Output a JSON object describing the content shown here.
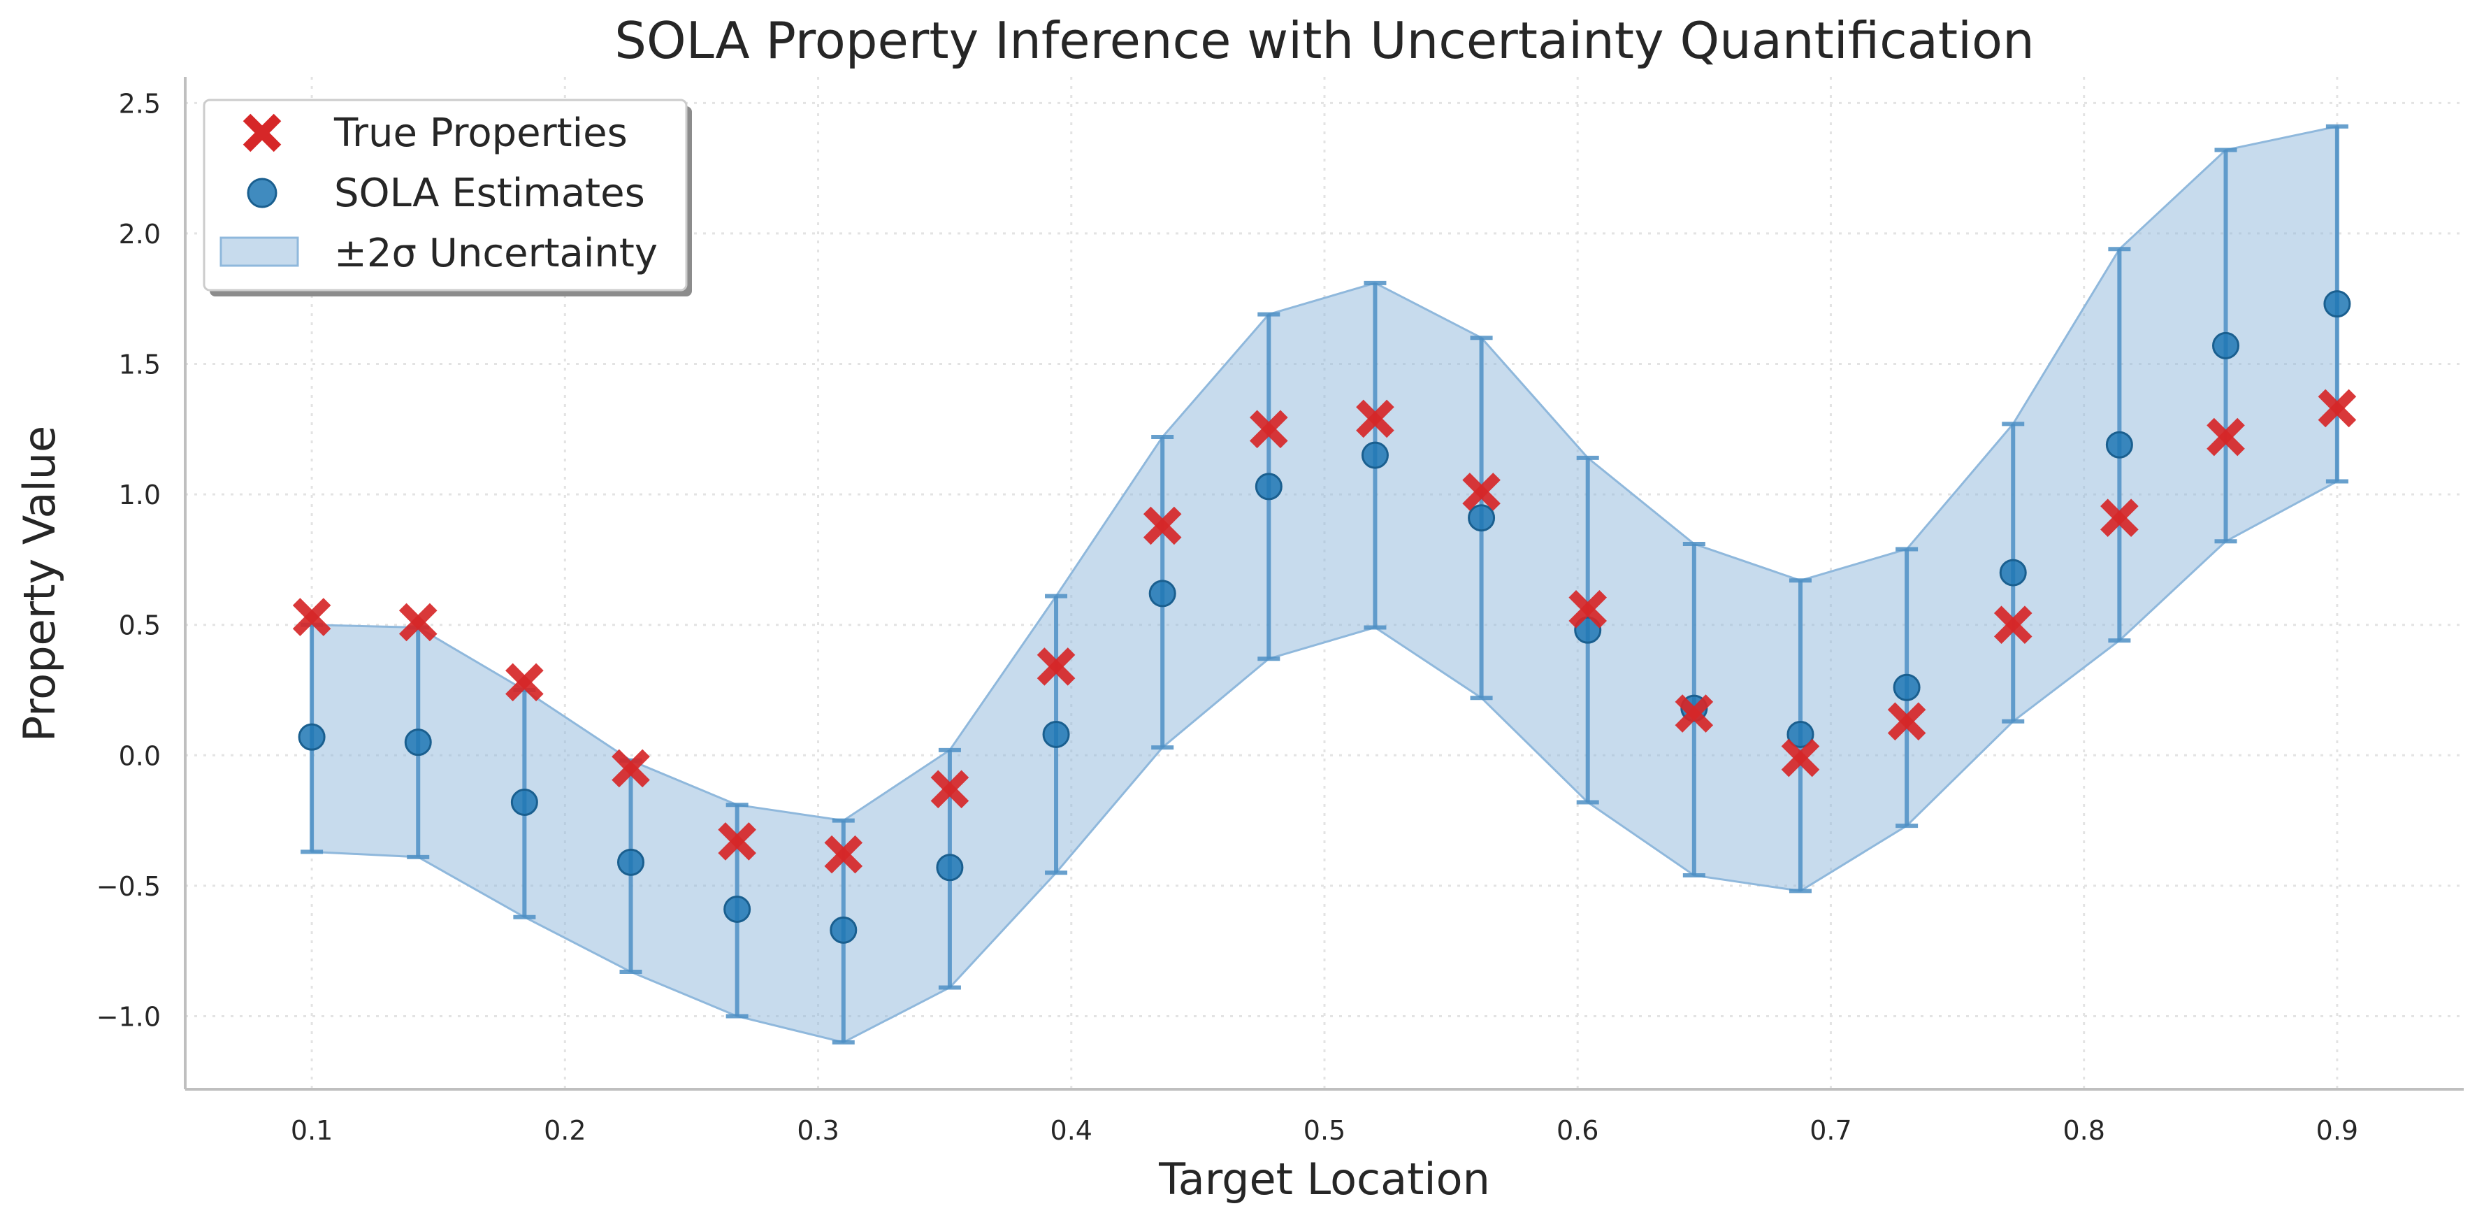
{
  "chart_data": {
    "type": "scatter",
    "title": "SOLA Property Inference with Uncertainty Quantification",
    "xlabel": "Target Location",
    "ylabel": "Property Value",
    "xlim": [
      0.05,
      0.95
    ],
    "ylim": [
      -1.28,
      2.6
    ],
    "grid": true,
    "legend_position": "top-left",
    "x": [
      0.1,
      0.142,
      0.184,
      0.226,
      0.268,
      0.31,
      0.352,
      0.394,
      0.436,
      0.478,
      0.52,
      0.562,
      0.604,
      0.646,
      0.688,
      0.73,
      0.772,
      0.814,
      0.856,
      0.9
    ],
    "x_ticks": [
      "0.1",
      "0.2",
      "0.3",
      "0.4",
      "0.5",
      "0.6",
      "0.7",
      "0.8",
      "0.9"
    ],
    "y_ticks": [
      "−1.0",
      "−0.5",
      "0.0",
      "0.5",
      "1.0",
      "1.5",
      "2.0",
      "2.5"
    ],
    "series": [
      {
        "name": "True Properties",
        "marker": "x",
        "color": "#d62728",
        "values": [
          0.53,
          0.51,
          0.28,
          -0.05,
          -0.33,
          -0.38,
          -0.13,
          0.34,
          0.88,
          1.25,
          1.29,
          1.01,
          0.56,
          0.16,
          -0.01,
          0.13,
          0.5,
          0.91,
          1.22,
          1.33
        ]
      },
      {
        "name": "SOLA Estimates",
        "marker": "circle",
        "color": "#1f77b4",
        "values": [
          0.07,
          0.05,
          -0.18,
          -0.41,
          -0.59,
          -0.67,
          -0.43,
          0.08,
          0.62,
          1.03,
          1.15,
          0.91,
          0.48,
          0.18,
          0.08,
          0.26,
          0.7,
          1.19,
          1.57,
          1.73
        ]
      },
      {
        "name": "±2σ Uncertainty",
        "marker": "band",
        "color": "#8fb8dc",
        "lower": [
          -0.37,
          -0.39,
          -0.62,
          -0.83,
          -1.0,
          -1.1,
          -0.89,
          -0.45,
          0.03,
          0.37,
          0.49,
          0.22,
          -0.18,
          -0.46,
          -0.52,
          -0.27,
          0.13,
          0.44,
          0.82,
          1.05
        ],
        "upper": [
          0.5,
          0.49,
          0.25,
          -0.02,
          -0.19,
          -0.25,
          0.02,
          0.61,
          1.22,
          1.69,
          1.81,
          1.6,
          1.14,
          0.81,
          0.67,
          0.79,
          1.27,
          1.94,
          2.32,
          2.41
        ]
      }
    ]
  }
}
